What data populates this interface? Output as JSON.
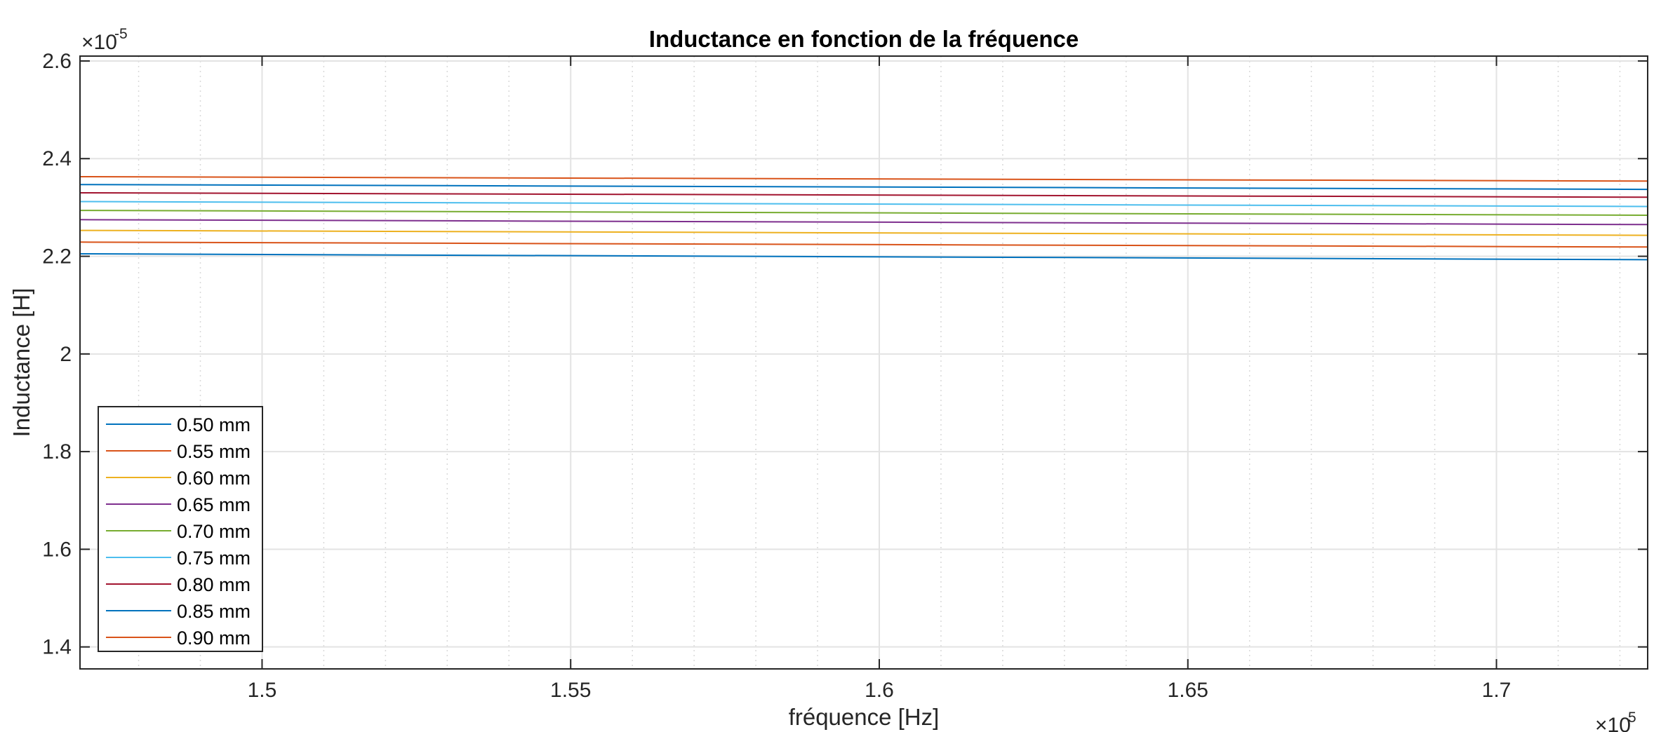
{
  "chart_data": {
    "type": "line",
    "title": "Inductance en fonction de la fréquence",
    "xlabel": "fréquence [Hz]",
    "ylabel": "Inductance [H]",
    "x_exponent_base": "×10",
    "x_exponent_power": "5",
    "y_exponent_base": "×10",
    "y_exponent_power": "-5",
    "xlim": [
      1.4705,
      1.7245
    ],
    "ylim": [
      1.355,
      2.61
    ],
    "x_ticks": [
      1.5,
      1.55,
      1.6,
      1.65,
      1.7
    ],
    "x_tick_labels": [
      "1.5",
      "1.55",
      "1.6",
      "1.65",
      "1.7"
    ],
    "x_minor_ticks": [
      1.48,
      1.49,
      1.51,
      1.52,
      1.53,
      1.54,
      1.56,
      1.57,
      1.58,
      1.59,
      1.61,
      1.62,
      1.63,
      1.64,
      1.66,
      1.67,
      1.68,
      1.69,
      1.71,
      1.72
    ],
    "y_ticks": [
      1.4,
      1.6,
      1.8,
      2.0,
      2.2,
      2.4,
      2.6
    ],
    "y_tick_labels": [
      "1.4",
      "1.6",
      "1.8",
      "2",
      "2.2",
      "2.4",
      "2.6"
    ],
    "grid": true,
    "minor_grid_x": true,
    "legend_position": "bottom-left",
    "x": [
      1.4705,
      1.7245
    ],
    "series": [
      {
        "name": "0.50 mm",
        "color": "#0072BD",
        "values": [
          2.205,
          2.193
        ]
      },
      {
        "name": "0.55 mm",
        "color": "#D95319",
        "values": [
          2.229,
          2.219
        ]
      },
      {
        "name": "0.60 mm",
        "color": "#EDB120",
        "values": [
          2.253,
          2.243
        ]
      },
      {
        "name": "0.65 mm",
        "color": "#7E2F8E",
        "values": [
          2.275,
          2.265
        ]
      },
      {
        "name": "0.70 mm",
        "color": "#77AC30",
        "values": [
          2.294,
          2.284
        ]
      },
      {
        "name": "0.75 mm",
        "color": "#4DBEEE",
        "values": [
          2.312,
          2.302
        ]
      },
      {
        "name": "0.80 mm",
        "color": "#A2142F",
        "values": [
          2.33,
          2.321
        ]
      },
      {
        "name": "0.85 mm",
        "color": "#0072BD",
        "values": [
          2.347,
          2.337
        ]
      },
      {
        "name": "0.90 mm",
        "color": "#D95319",
        "values": [
          2.363,
          2.354
        ]
      }
    ]
  }
}
